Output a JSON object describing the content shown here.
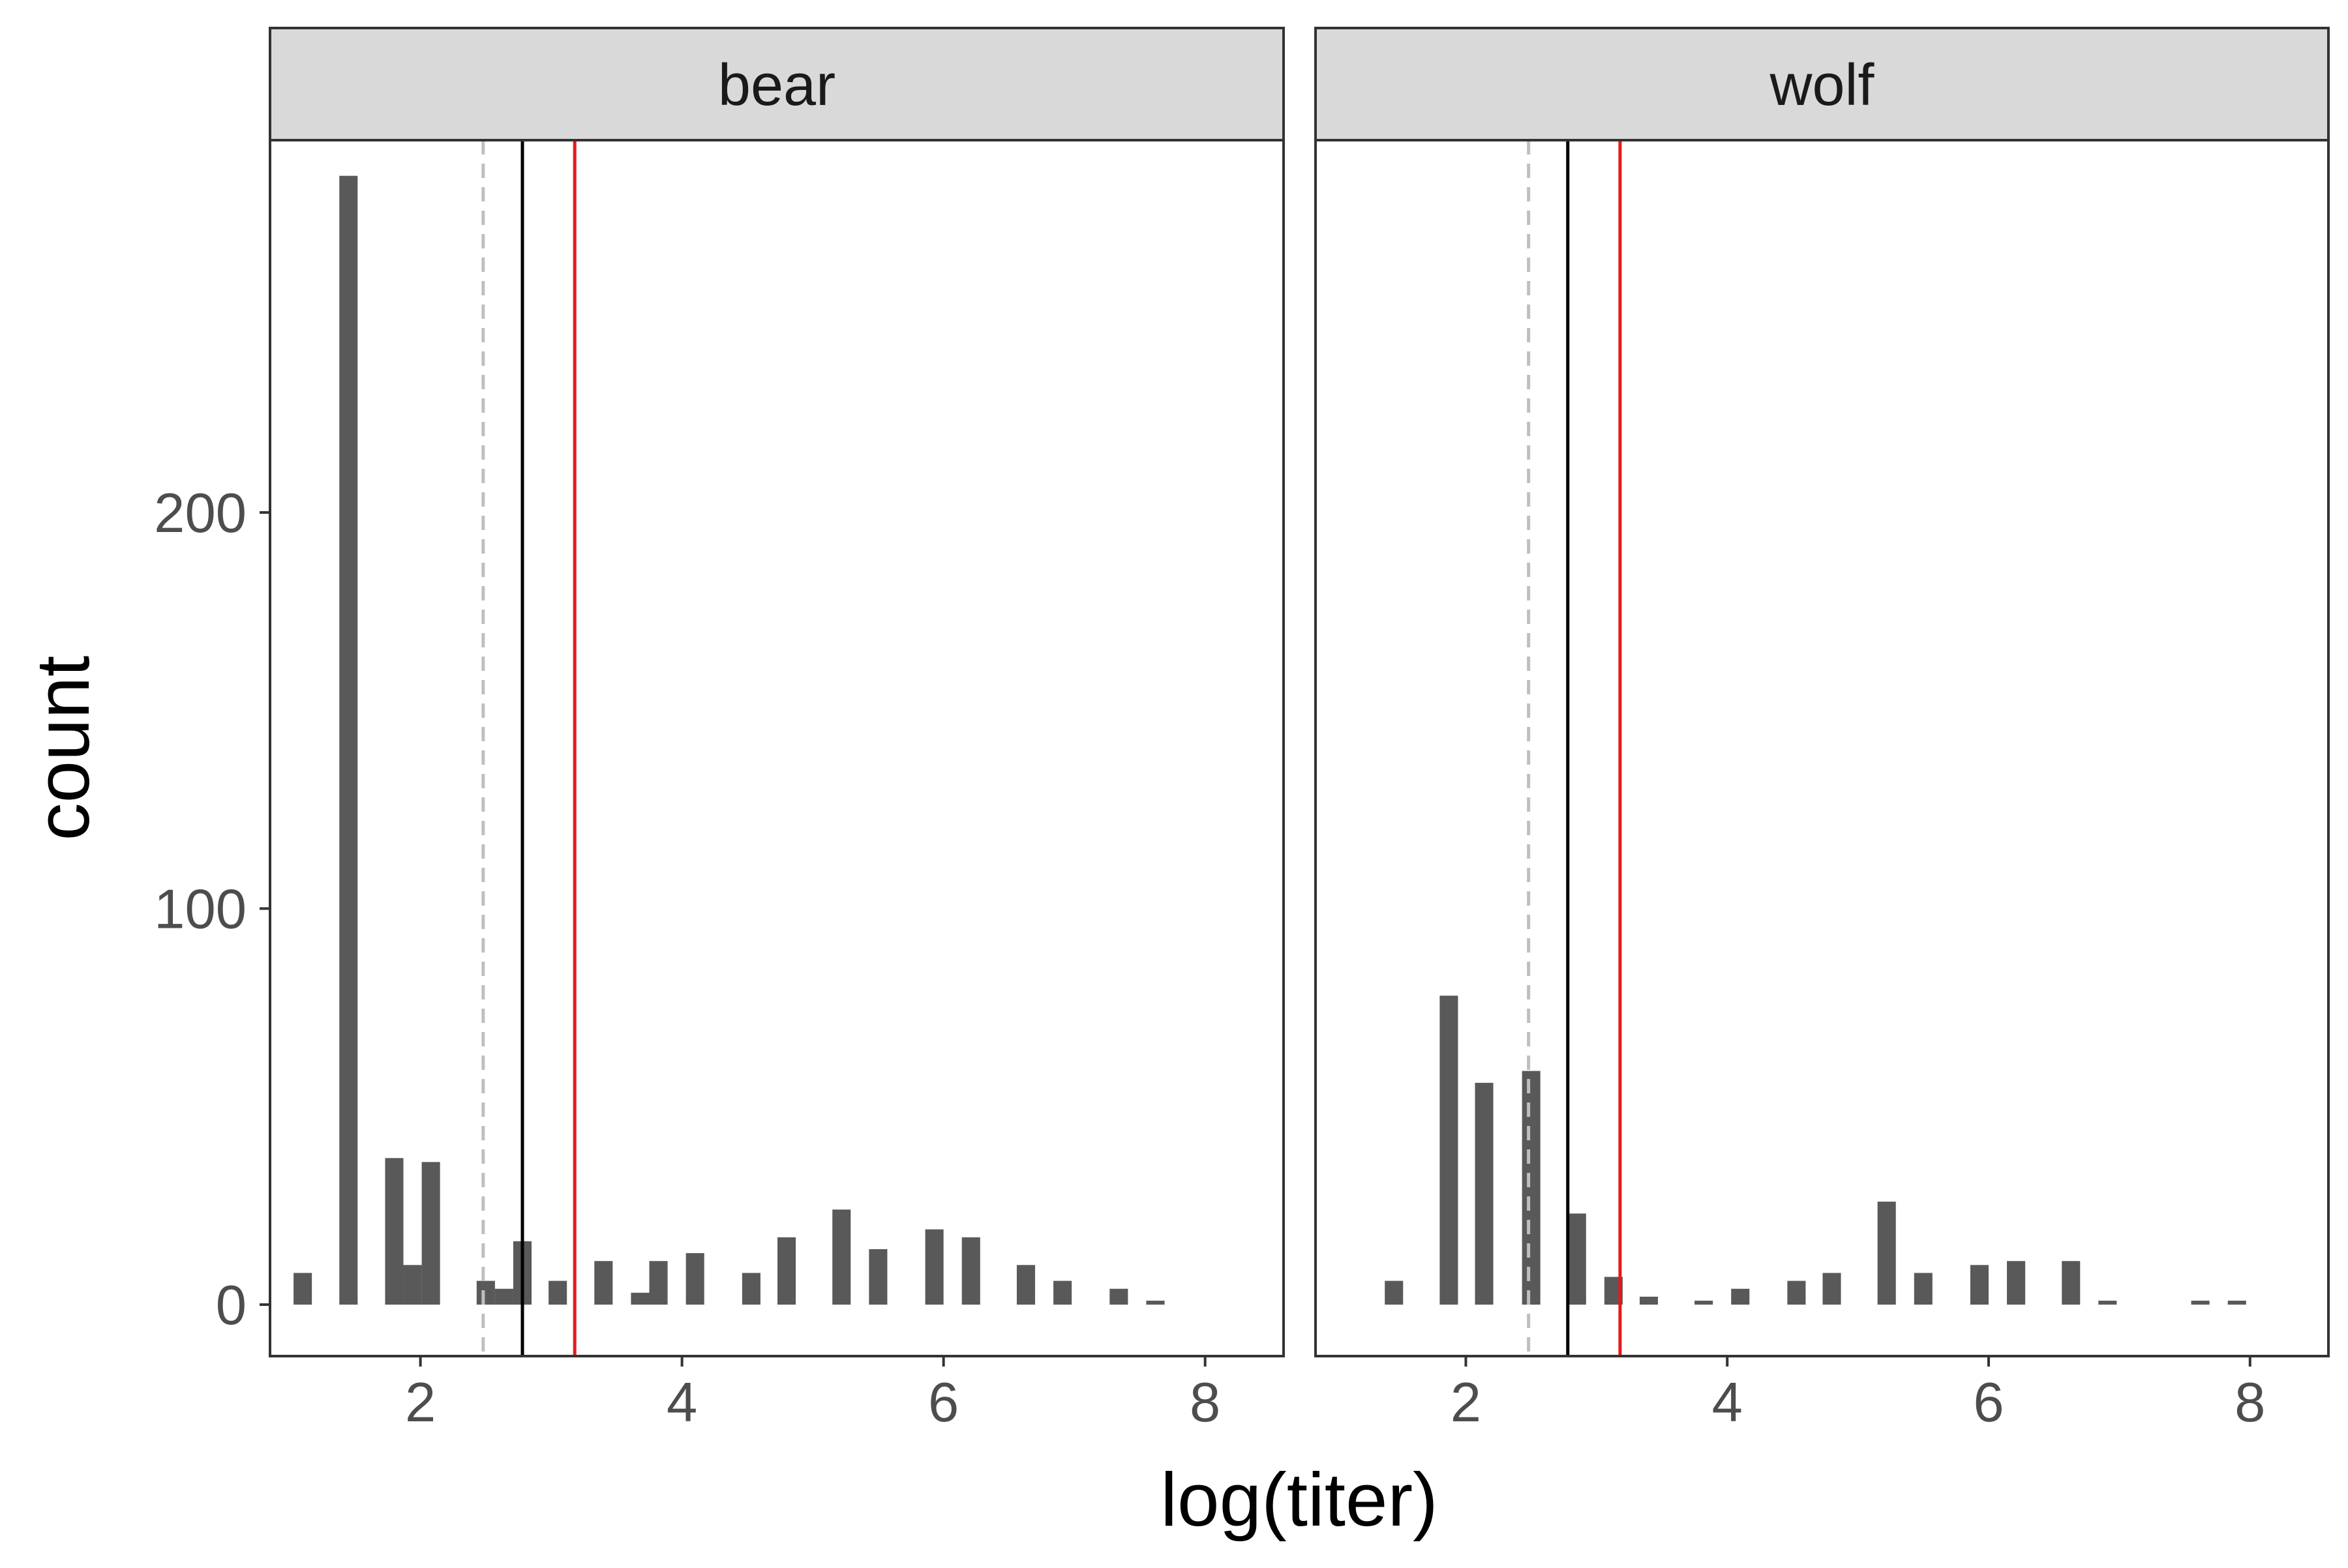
{
  "chart_data": {
    "type": "bar",
    "xlabel": "log(titer)",
    "ylabel": "count",
    "xlim": [
      0.85,
      8.6
    ],
    "ylim": [
      -13,
      294
    ],
    "xticks": [
      2,
      4,
      6,
      8
    ],
    "yticks": [
      0,
      100,
      200
    ],
    "bin_width": 0.14,
    "bar_color": "#595959",
    "reference_lines": [
      {
        "x": 2.48,
        "color": "#bfbfbf",
        "style": "dashed"
      },
      {
        "x": 2.78,
        "color": "#000000",
        "style": "solid"
      },
      {
        "x": 3.18,
        "color": "#e41a1c",
        "style": "solid"
      }
    ],
    "panels": [
      {
        "name": "bear",
        "x": [
          1.1,
          1.45,
          1.8,
          1.94,
          2.08,
          2.5,
          2.64,
          2.78,
          3.05,
          3.4,
          3.68,
          3.82,
          4.1,
          4.53,
          4.8,
          5.22,
          5.5,
          5.93,
          6.21,
          6.63,
          6.91,
          7.34,
          7.62
        ],
        "values": [
          8,
          285,
          37,
          10,
          36,
          6,
          4,
          16,
          6,
          11,
          3,
          11,
          13,
          8,
          17,
          24,
          14,
          19,
          17,
          10,
          6,
          4,
          1
        ]
      },
      {
        "name": "wolf",
        "x": [
          1.45,
          1.87,
          2.14,
          2.5,
          2.85,
          3.13,
          3.4,
          3.82,
          4.1,
          4.53,
          4.8,
          5.22,
          5.5,
          5.93,
          6.21,
          6.63,
          6.91,
          7.62,
          7.9
        ],
        "values": [
          6,
          78,
          56,
          59,
          23,
          7,
          2,
          1,
          4,
          6,
          8,
          26,
          8,
          10,
          11,
          11,
          1,
          1,
          1
        ]
      }
    ]
  }
}
